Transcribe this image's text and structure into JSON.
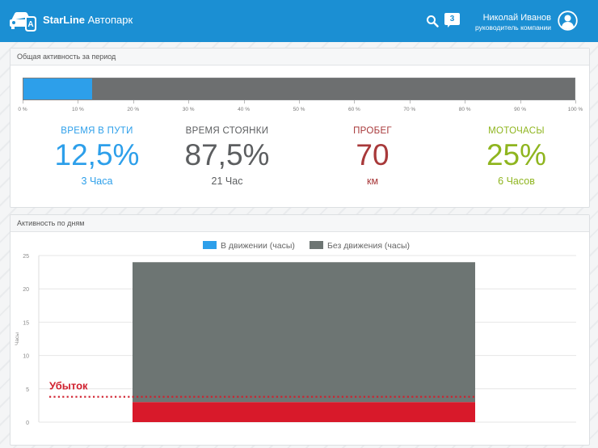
{
  "header": {
    "brand_bold": "StarLine",
    "brand_rest": "Автопарк",
    "notifications_count": "3",
    "user_name": "Николай Иванов",
    "user_role": "руководитель компании",
    "icons": [
      "car-logo-icon",
      "search-icon",
      "chat-icon",
      "user-avatar-icon"
    ]
  },
  "period_panel": {
    "title": "Общая активность за период",
    "progress_percent": 12.5,
    "tick_labels": [
      "0 %",
      "10 %",
      "20 %",
      "30 %",
      "40 %",
      "50 %",
      "60 %",
      "70 %",
      "80 %",
      "90 %",
      "100 %"
    ],
    "colors": {
      "moving": "#2d9fea",
      "stopped": "#6d6f70"
    },
    "stats": [
      {
        "label": "ВРЕМЯ В ПУТИ",
        "value": "12,5%",
        "sub": "3 Часа",
        "color": "#2d9fea"
      },
      {
        "label": "ВРЕМЯ СТОЯНКИ",
        "value": "87,5%",
        "sub": "21 Час",
        "color": "#5c5e60"
      },
      {
        "label": "ПРОБЕГ",
        "value": "70",
        "sub": "км",
        "color": "#a8393a"
      },
      {
        "label": "МОТОЧАСЫ",
        "value": "25%",
        "sub": "6 Часов",
        "color": "#8fb51f"
      }
    ]
  },
  "daily_panel": {
    "title": "Активность по дням",
    "chart_data": {
      "type": "bar",
      "stacked": true,
      "categories": [
        ""
      ],
      "series": [
        {
          "name": "В движении (часы)",
          "values": [
            3
          ],
          "color": "#2d9fea"
        },
        {
          "name": "Без движения (часы)",
          "values": [
            21
          ],
          "color": "#6d7573"
        }
      ],
      "ylabel": "Часы",
      "ylim": [
        0,
        25
      ],
      "yticks": [
        0,
        5,
        10,
        15,
        20,
        25
      ],
      "grid": true,
      "legend": "top",
      "annotation": {
        "label": "Убыток",
        "y": 3.8,
        "color": "#d0202e"
      },
      "moving_bar_color_override": "#d8192a"
    }
  }
}
